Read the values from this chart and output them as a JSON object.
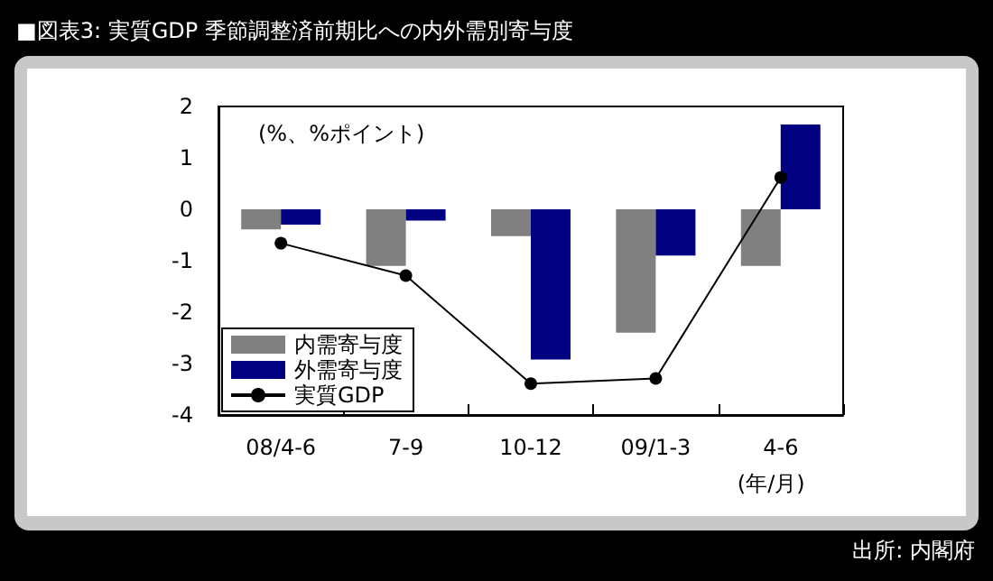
{
  "chart_data": {
    "type": "bar",
    "title": "■図表3: 実質GDP 季節調整済前期比への内外需別寄与度",
    "categories": [
      "08/4-6",
      "7-9",
      "10-12",
      "09/1-3",
      "4-6"
    ],
    "series": [
      {
        "name": "内需寄与度",
        "color": "#808080",
        "values": [
          -0.39,
          -1.1,
          -0.52,
          -2.4,
          -1.1
        ]
      },
      {
        "name": "外需寄与度",
        "color": "#000080",
        "values": [
          -0.3,
          -0.22,
          -2.92,
          -0.9,
          1.65
        ]
      },
      {
        "name": "実質GDP",
        "type": "line",
        "color": "#000000",
        "values": [
          -0.66,
          -1.29,
          -3.39,
          -3.29,
          0.62
        ]
      }
    ],
    "ylim": [
      -4,
      2
    ],
    "yticks": [
      -4,
      -3,
      -2,
      -1,
      0,
      1,
      2
    ],
    "grid": false,
    "legend": "bottom left",
    "marker": "circle",
    "line_style": "solid",
    "annotations": [
      "(%、%ポイント)",
      "(年/月)",
      "出所: 内閣府"
    ]
  }
}
